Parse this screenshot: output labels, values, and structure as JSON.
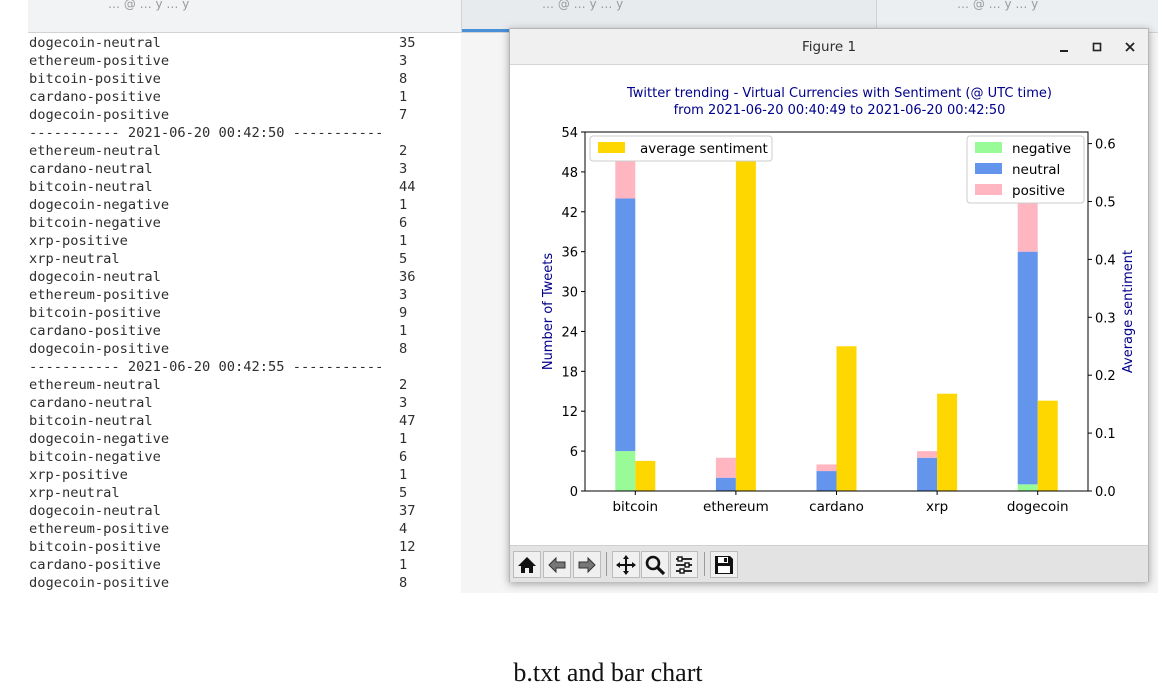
{
  "tabs": [
    {
      "label": "… @ … y … y"
    },
    {
      "label": "… @ … y … y"
    },
    {
      "label": "… @ … y … y"
    }
  ],
  "terminal": {
    "lines": [
      {
        "key": "dogecoin-neutral",
        "val": "35"
      },
      {
        "key": "ethereum-positive",
        "val": "3"
      },
      {
        "key": "bitcoin-positive",
        "val": "8"
      },
      {
        "key": "cardano-positive",
        "val": "1"
      },
      {
        "key": "dogecoin-positive",
        "val": "7"
      },
      {
        "key": "----------- 2021-06-20 00:42:50 -----------",
        "val": ""
      },
      {
        "key": "ethereum-neutral",
        "val": "2"
      },
      {
        "key": "cardano-neutral",
        "val": "3"
      },
      {
        "key": "bitcoin-neutral",
        "val": "44"
      },
      {
        "key": "dogecoin-negative",
        "val": "1"
      },
      {
        "key": "bitcoin-negative",
        "val": "6"
      },
      {
        "key": "xrp-positive",
        "val": "1"
      },
      {
        "key": "xrp-neutral",
        "val": "5"
      },
      {
        "key": "dogecoin-neutral",
        "val": "36"
      },
      {
        "key": "ethereum-positive",
        "val": "3"
      },
      {
        "key": "bitcoin-positive",
        "val": "9"
      },
      {
        "key": "cardano-positive",
        "val": "1"
      },
      {
        "key": "dogecoin-positive",
        "val": "8"
      },
      {
        "key": "----------- 2021-06-20 00:42:55 -----------",
        "val": ""
      },
      {
        "key": "ethereum-neutral",
        "val": "2"
      },
      {
        "key": "cardano-neutral",
        "val": "3"
      },
      {
        "key": "bitcoin-neutral",
        "val": "47"
      },
      {
        "key": "dogecoin-negative",
        "val": "1"
      },
      {
        "key": "bitcoin-negative",
        "val": "6"
      },
      {
        "key": "xrp-positive",
        "val": "1"
      },
      {
        "key": "xrp-neutral",
        "val": "5"
      },
      {
        "key": "dogecoin-neutral",
        "val": "37"
      },
      {
        "key": "ethereum-positive",
        "val": "4"
      },
      {
        "key": "bitcoin-positive",
        "val": "12"
      },
      {
        "key": "cardano-positive",
        "val": "1"
      },
      {
        "key": "dogecoin-positive",
        "val": "8"
      }
    ]
  },
  "window": {
    "title": "Figure 1",
    "minimize_label": "–",
    "maximize_label": "□",
    "close_label": "×"
  },
  "toolbar": {
    "icons": [
      "home-icon",
      "back-icon",
      "forward-icon",
      "pan-icon",
      "zoom-icon",
      "configure-subplots-icon",
      "save-icon"
    ]
  },
  "caption": "b.txt and bar chart",
  "colors": {
    "negative": "#98fb98",
    "neutral": "#6495ed",
    "positive": "#ffb6c1",
    "average": "#ffd700",
    "title": "#00008b",
    "axis_label": "#00008b"
  },
  "chart_data": {
    "type": "bar",
    "title": "Twitter trending - Virtual Currencies with Sentiment (@ UTC time)",
    "subtitle": "from 2021-06-20 00:40:49 to 2021-06-20 00:42:50",
    "categories": [
      "bitcoin",
      "ethereum",
      "cardano",
      "xrp",
      "dogecoin"
    ],
    "ylabel": "Number of Tweets",
    "y2label": "Average sentiment",
    "ylim": [
      0,
      54
    ],
    "yticks": [
      "0",
      "6",
      "12",
      "18",
      "24",
      "30",
      "36",
      "42",
      "48",
      "54"
    ],
    "y2lim": [
      0,
      0.62
    ],
    "y2ticks": [
      "0.0",
      "0.1",
      "0.2",
      "0.3",
      "0.4",
      "0.5",
      "0.6"
    ],
    "stacked_series": [
      {
        "name": "negative",
        "values": [
          6,
          0,
          0,
          0,
          1
        ]
      },
      {
        "name": "neutral",
        "values": [
          38,
          2,
          3,
          5,
          35
        ]
      },
      {
        "name": "positive",
        "values": [
          8,
          3,
          1,
          1,
          8
        ]
      }
    ],
    "average_series": {
      "name": "average sentiment",
      "values": [
        0.052,
        0.605,
        0.25,
        0.168,
        0.156
      ]
    },
    "legend_left": "upper left",
    "legend_right": "upper right",
    "grid": false
  }
}
